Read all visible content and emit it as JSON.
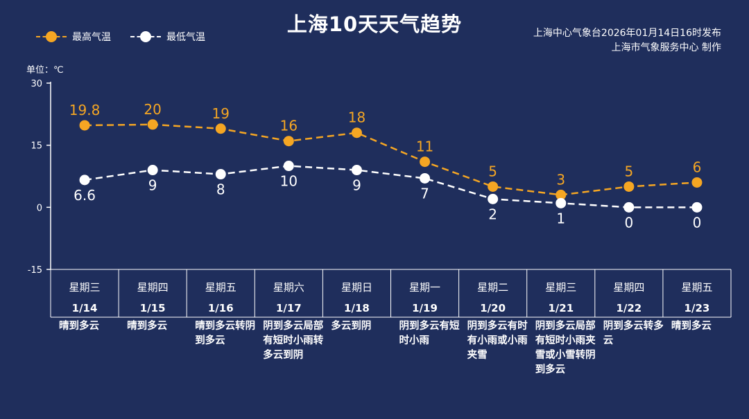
{
  "title": "上海10天天气趋势",
  "legend": {
    "high": "最高气温",
    "low": "最低气温"
  },
  "source": {
    "line1": "上海中心气象台2026年01月14日16时发布",
    "line2": "上海市气象服务中心  制作"
  },
  "unit": "单位：℃",
  "colors": {
    "background": "#1f2e5c",
    "high": "#f5a623",
    "low": "#ffffff",
    "weekend": "#f5a623"
  },
  "chart_data": {
    "type": "line",
    "ylim": [
      -15,
      30
    ],
    "yticks": [
      30,
      15,
      0,
      -15
    ],
    "grid": false,
    "legend_position": "top-left",
    "categories": [
      "1/14",
      "1/15",
      "1/16",
      "1/17",
      "1/18",
      "1/19",
      "1/20",
      "1/21",
      "1/22",
      "1/23"
    ],
    "weekdays": [
      "星期三",
      "星期四",
      "星期五",
      "星期六",
      "星期日",
      "星期一",
      "星期二",
      "星期三",
      "星期四",
      "星期五"
    ],
    "weekend": [
      false,
      false,
      false,
      true,
      true,
      false,
      false,
      false,
      false,
      false
    ],
    "series": [
      {
        "name": "最高气温",
        "values": [
          19.8,
          20,
          19,
          16,
          18,
          11,
          5,
          3,
          5,
          6
        ],
        "labels": [
          "19.8",
          "20",
          "19",
          "16",
          "18",
          "11",
          "5",
          "3",
          "5",
          "6"
        ]
      },
      {
        "name": "最低气温",
        "values": [
          6.6,
          9,
          8,
          10,
          9,
          7,
          2,
          1,
          0,
          0
        ],
        "labels": [
          "6.6",
          "9",
          "8",
          "10",
          "9",
          "7",
          "2",
          "1",
          "0",
          "0"
        ]
      }
    ],
    "weather": [
      "晴到多云",
      "晴到多云",
      "晴到多云转阴到多云",
      "阴到多云局部有短时小雨转多云到阴",
      "多云到阴",
      "阴到多云有短时小雨",
      "阴到多云有时有小雨或小雨夹雪",
      "阴到多云局部有短时小雨夹雪或小雪转阴到多云",
      "阴到多云转多云",
      "晴到多云"
    ]
  }
}
